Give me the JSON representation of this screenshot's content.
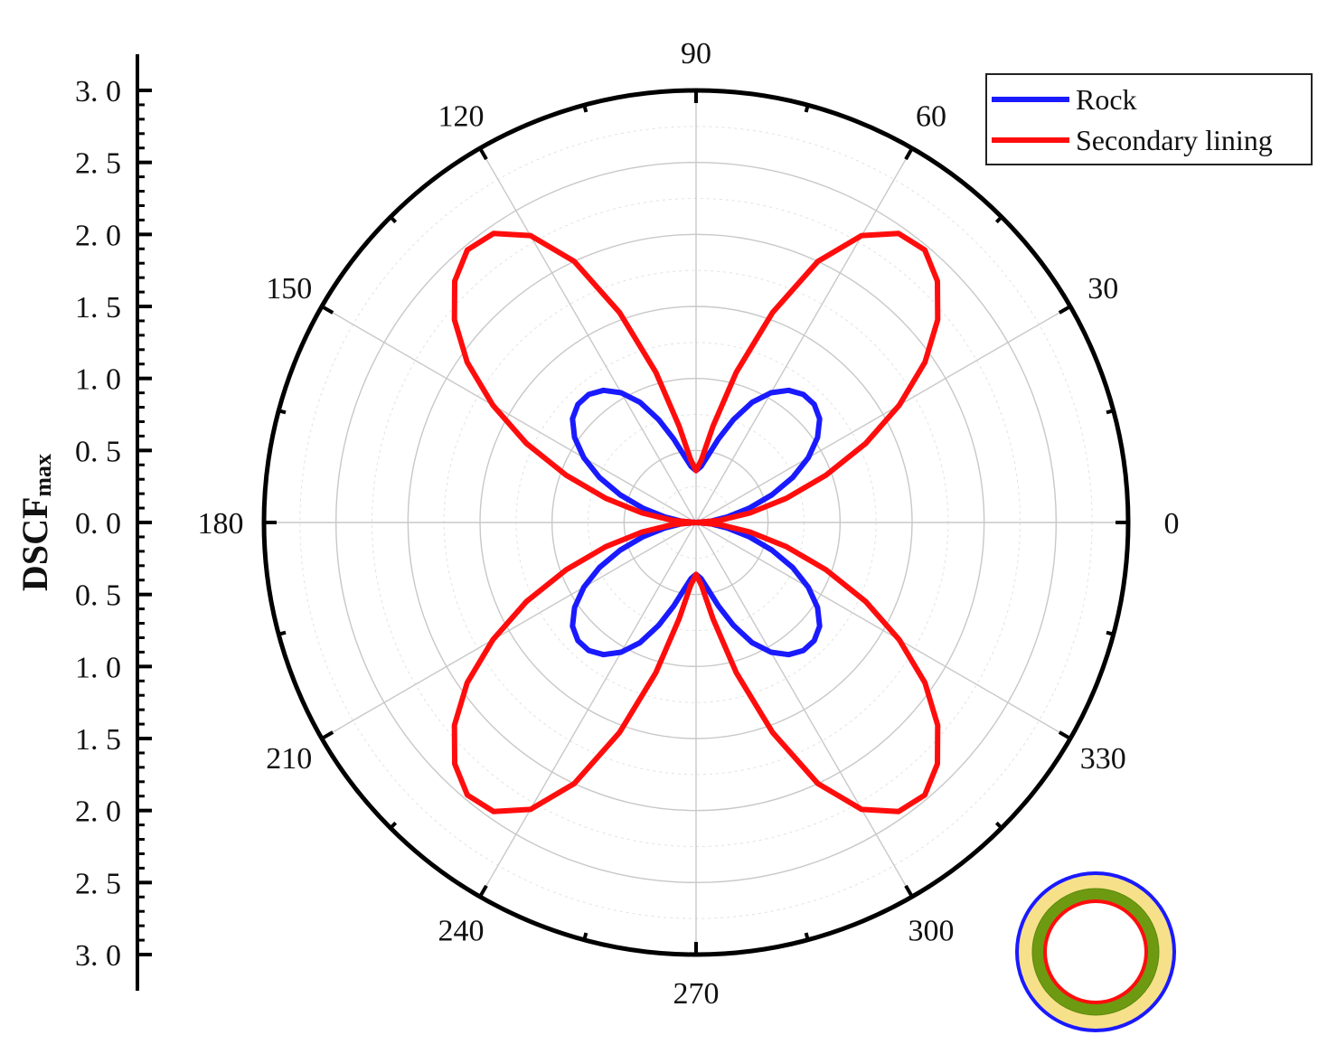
{
  "chart_data": {
    "type": "polar-line",
    "title": "",
    "ylabel": "DSCF",
    "ylabel_sub": "max",
    "radial_range": [
      0,
      3.0
    ],
    "radial_tick_labels": [
      "3. 0",
      "2. 5",
      "2. 0",
      "1. 5",
      "1. 0",
      "0. 5",
      "0. 0",
      "0. 5",
      "1. 0",
      "1. 5",
      "2. 0",
      "2. 5",
      "3. 0"
    ],
    "angle_tick_labels": [
      "0",
      "30",
      "60",
      "90",
      "120",
      "150",
      "180",
      "210",
      "240",
      "270",
      "300",
      "330"
    ],
    "grid": true,
    "legend_position": "top-right",
    "series": [
      {
        "name": "Rock",
        "color": "#1a1aff",
        "theta_deg": [
          0,
          5,
          10,
          15,
          20,
          25,
          30,
          35,
          40,
          45,
          50,
          55,
          60,
          65,
          70,
          75,
          80,
          85,
          90
        ],
        "r": [
          0.0,
          0.1,
          0.22,
          0.38,
          0.56,
          0.74,
          0.9,
          1.03,
          1.12,
          1.16,
          1.16,
          1.12,
          1.04,
          0.92,
          0.76,
          0.6,
          0.47,
          0.39,
          0.36
        ]
      },
      {
        "name": "Secondary lining",
        "color": "#ff0d0d",
        "theta_deg": [
          0,
          5,
          10,
          15,
          20,
          25,
          30,
          35,
          40,
          45,
          50,
          55,
          60,
          65,
          70,
          75,
          80,
          85,
          90
        ],
        "r": [
          0.0,
          0.16,
          0.38,
          0.65,
          0.96,
          1.3,
          1.63,
          1.94,
          2.19,
          2.37,
          2.47,
          2.45,
          2.3,
          2.0,
          1.55,
          1.08,
          0.68,
          0.44,
          0.36
        ]
      }
    ],
    "symmetry": "mirrored about both axes"
  },
  "inset": {
    "icon": "tunnel-cross-section-icon",
    "rings": [
      {
        "name": "rock",
        "color": "#1a1aff"
      },
      {
        "name": "fill",
        "color": "#f7e08a"
      },
      {
        "name": "lining",
        "color": "#6e9a12"
      },
      {
        "name": "inner",
        "color": "#ff0d0d"
      }
    ]
  }
}
